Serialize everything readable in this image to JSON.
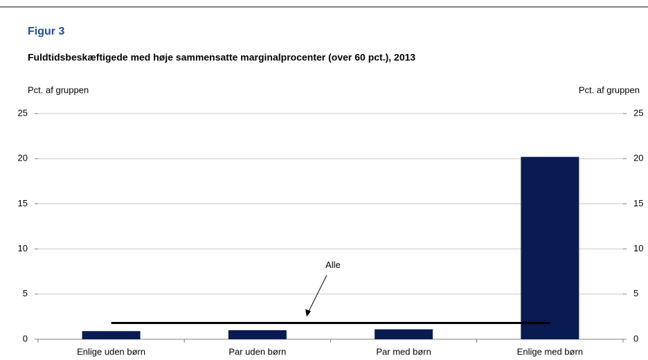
{
  "chart_data": {
    "type": "bar",
    "title": "Figur 3",
    "subtitle": "Fuldtidsbeskæftigede med høje sammensatte marginalprocenter (over 60 pct.), 2013",
    "ylabel": "Pct. af gruppen",
    "y2label": "Pct. af gruppen",
    "categories": [
      "Enlige uden børn",
      "Par uden børn",
      "Par med børn",
      "Enlige med børn"
    ],
    "values": [
      0.9,
      1.0,
      1.1,
      20.2
    ],
    "color": "#0a1a52",
    "reference_line": {
      "name": "Alle",
      "value": 1.8,
      "color": "#000000"
    },
    "ylim": [
      0,
      25
    ],
    "yticks": [
      0,
      5,
      10,
      15,
      20,
      25
    ],
    "y2lim": [
      0,
      25
    ],
    "y2ticks": [
      0,
      5,
      10,
      15,
      20,
      25
    ],
    "grid": true
  }
}
